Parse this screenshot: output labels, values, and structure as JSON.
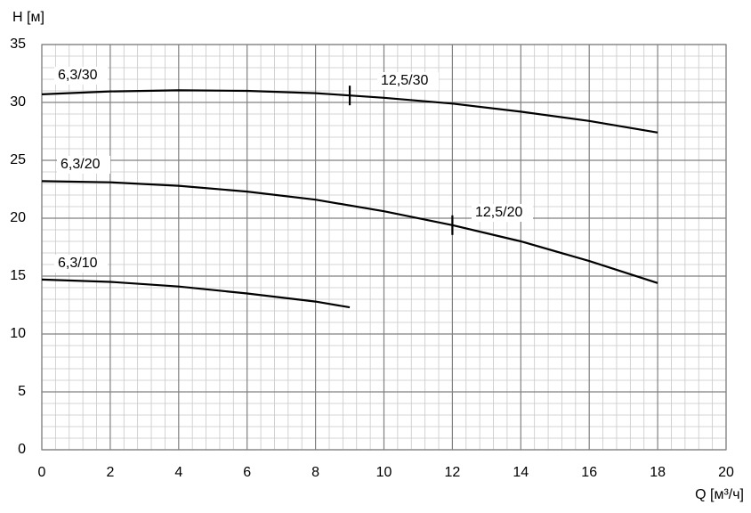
{
  "chart_data": {
    "type": "line",
    "x_label": "Q [м³/ч]",
    "y_label": "H [м]",
    "xlim": [
      0,
      20
    ],
    "xticks": [
      0,
      2,
      4,
      6,
      8,
      10,
      12,
      14,
      16,
      18,
      20
    ],
    "ylim": [
      0,
      35
    ],
    "yticks": [
      0,
      5,
      10,
      15,
      20,
      25,
      30,
      35
    ],
    "x_minor_ticks": [
      0.4,
      0.8,
      1.2,
      1.6,
      2.4,
      2.8,
      3.2,
      3.6,
      4.4,
      4.8,
      5.2,
      5.6,
      6.4,
      6.8,
      7.2,
      7.6,
      8.4,
      8.8,
      9.2,
      9.6,
      10.4,
      10.8,
      11.2,
      11.6,
      12.4,
      12.8,
      13.2,
      13.6,
      14.4,
      14.8,
      15.2,
      15.6,
      16.4,
      16.8,
      17.2,
      17.6,
      18.4,
      18.8,
      19.2,
      19.6
    ],
    "y_minor_ticks": [
      1,
      2,
      3,
      4,
      6,
      7,
      8,
      9,
      11,
      12,
      13,
      14,
      16,
      17,
      18,
      19,
      21,
      22,
      23,
      24,
      26,
      27,
      28,
      29,
      31,
      32,
      33,
      34
    ],
    "grid": true,
    "series": [
      {
        "name": "6,3/30",
        "color": "#000000",
        "x": [
          0,
          2,
          4,
          6,
          8,
          9
        ],
        "values": [
          30.7,
          30.95,
          31.05,
          31.0,
          30.8,
          30.6
        ]
      },
      {
        "name": "12,5/30",
        "color": "#000000",
        "x": [
          9,
          10,
          12,
          14,
          16,
          18
        ],
        "values": [
          30.6,
          30.4,
          29.9,
          29.2,
          28.4,
          27.4
        ]
      },
      {
        "name": "6,3/20",
        "color": "#000000",
        "x": [
          0,
          2,
          4,
          6,
          8,
          10,
          12
        ],
        "values": [
          23.2,
          23.1,
          22.8,
          22.3,
          21.6,
          20.6,
          19.4
        ]
      },
      {
        "name": "12,5/20",
        "color": "#000000",
        "x": [
          12,
          14,
          16,
          18
        ],
        "values": [
          19.4,
          18.0,
          16.3,
          14.4
        ]
      },
      {
        "name": "6,3/10",
        "color": "#000000",
        "x": [
          0,
          2,
          4,
          6,
          8,
          9
        ],
        "values": [
          14.7,
          14.5,
          14.1,
          13.5,
          12.8,
          12.3
        ]
      }
    ]
  }
}
